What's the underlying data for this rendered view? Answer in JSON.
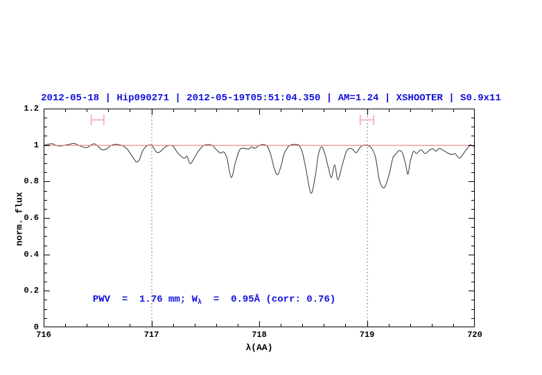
{
  "page": {
    "background": "#ffffff",
    "frame_color": "#000000",
    "text_blue": "#1111dd"
  },
  "chart_data": {
    "type": "line",
    "title": "2012-05-18 | Hip090271 | 2012-05-19T05:51:04.350 | AM=1.24 | XSHOOTER | S0.9x11",
    "title_color": "#1111dd",
    "xlabel": "λ(AA)",
    "ylabel": "norm. flux",
    "xlim": [
      716,
      720
    ],
    "ylim": [
      0,
      1.2
    ],
    "grid": "off",
    "legend": "none",
    "x_major_ticks": [
      716,
      717,
      718,
      719,
      720
    ],
    "x_tick_labels": [
      "716",
      "717",
      "718",
      "719",
      "720"
    ],
    "x_minor_step": 0.2,
    "y_major_ticks": [
      0,
      0.2,
      0.4,
      0.6,
      0.8,
      1,
      1.2
    ],
    "y_tick_labels": [
      "0",
      "0.2",
      "0.4",
      "0.6",
      "0.8",
      "1",
      "1.2"
    ],
    "y_minor_step": 0.05,
    "dotted_vlines": {
      "x": [
        717,
        719
      ],
      "color": "#555555"
    },
    "continuum_line": {
      "y": 1.0,
      "color": "#f07e7e"
    },
    "band_markers": {
      "color": "#f2a0a0",
      "items": [
        {
          "x_center": 716.5,
          "x_half_width": 0.059,
          "y": 1.138,
          "cap_half_height": 0.029
        },
        {
          "x_center": 719.0,
          "x_half_width": 0.063,
          "y": 1.138,
          "cap_half_height": 0.029
        }
      ]
    },
    "series": [
      {
        "name": "normalized-spectrum",
        "color": "#333333",
        "x": [
          716.0,
          716.04,
          716.08,
          716.12,
          716.16,
          716.2,
          716.24,
          716.28,
          716.32,
          716.36,
          716.4,
          716.44,
          716.47,
          716.5,
          716.54,
          716.58,
          716.62,
          716.66,
          716.7,
          716.74,
          716.78,
          716.82,
          716.86,
          716.89,
          716.92,
          716.96,
          717.0,
          717.02,
          717.05,
          717.08,
          717.12,
          717.16,
          717.2,
          717.24,
          717.28,
          717.31,
          717.33,
          717.36,
          717.4,
          717.44,
          717.48,
          717.52,
          717.56,
          717.6,
          717.64,
          717.67,
          717.7,
          717.74,
          717.78,
          717.82,
          717.86,
          717.9,
          717.93,
          717.96,
          718.0,
          718.04,
          718.08,
          718.11,
          718.14,
          718.17,
          718.2,
          718.23,
          718.27,
          718.3,
          718.34,
          718.37,
          718.4,
          718.43,
          718.48,
          718.52,
          718.55,
          718.58,
          718.61,
          718.64,
          718.67,
          718.7,
          718.73,
          718.77,
          718.81,
          718.84,
          718.87,
          718.9,
          718.94,
          718.97,
          719.0,
          719.04,
          719.08,
          719.11,
          719.14,
          719.17,
          719.21,
          719.24,
          719.27,
          719.3,
          719.33,
          719.36,
          719.38,
          719.4,
          719.43,
          719.46,
          719.5,
          719.54,
          719.58,
          719.61,
          719.64,
          719.67,
          719.71,
          719.75,
          719.79,
          719.82,
          719.86,
          719.91,
          719.94,
          719.96,
          720.0
        ],
        "y": [
          1.0,
          1.004,
          1.007,
          0.997,
          0.995,
          1.0,
          1.004,
          1.009,
          1.0,
          0.99,
          0.986,
          1.0,
          1.007,
          0.995,
          0.974,
          0.978,
          0.996,
          1.004,
          1.002,
          0.994,
          0.974,
          0.94,
          0.908,
          0.922,
          0.97,
          0.996,
          0.999,
          0.985,
          0.96,
          0.963,
          0.986,
          0.998,
          0.994,
          0.96,
          0.936,
          0.928,
          0.938,
          0.898,
          0.932,
          0.97,
          0.996,
          1.002,
          1.0,
          0.976,
          0.956,
          0.962,
          0.93,
          0.822,
          0.906,
          0.975,
          0.982,
          0.978,
          0.99,
          0.982,
          0.998,
          1.003,
          0.99,
          0.94,
          0.87,
          0.837,
          0.88,
          0.95,
          0.992,
          1.002,
          1.003,
          0.998,
          0.96,
          0.88,
          0.736,
          0.83,
          0.95,
          0.99,
          0.95,
          0.88,
          0.821,
          0.891,
          0.81,
          0.89,
          0.965,
          0.982,
          0.975,
          0.958,
          0.99,
          1.0,
          0.998,
          0.985,
          0.93,
          0.82,
          0.77,
          0.775,
          0.85,
          0.93,
          0.952,
          0.97,
          0.955,
          0.89,
          0.84,
          0.905,
          0.965,
          0.953,
          0.974,
          0.953,
          0.972,
          0.98,
          0.966,
          0.982,
          0.97,
          0.956,
          0.948,
          0.952,
          0.928,
          0.966,
          0.988,
          1.002,
          0.988
        ]
      }
    ],
    "annotation": {
      "before_sub": "PWV  =  1.76 mm; W",
      "sub": "λ",
      "after_sub": "  =  0.95Å (corr: 0.76)",
      "color": "#1111dd",
      "x": 716.35,
      "y": 0.2
    }
  }
}
